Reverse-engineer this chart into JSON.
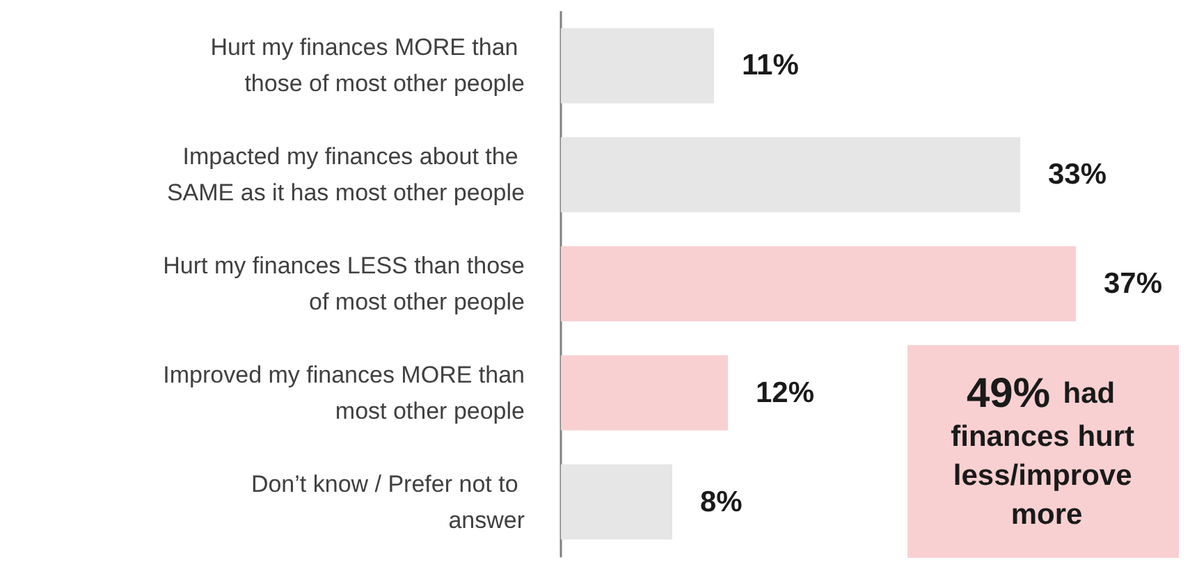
{
  "chart_data": {
    "type": "bar",
    "orientation": "horizontal",
    "categories": [
      "Hurt my finances MORE than those of most other people",
      "Impacted my finances about the SAME as it has most other people",
      "Hurt my finances LESS than those of most other people",
      "Improved my finances MORE than most other people",
      "Don’t know / Prefer not to answer"
    ],
    "values": [
      11,
      33,
      37,
      12,
      8
    ],
    "colors": [
      "#e6e6e6",
      "#e6e6e6",
      "#f9d0d2",
      "#f9d0d2",
      "#e6e6e6"
    ],
    "value_labels": [
      "11%",
      "33%",
      "37%",
      "12%",
      "8%"
    ],
    "annotations": [
      "49% had finances hurt less/improve more"
    ]
  }
}
